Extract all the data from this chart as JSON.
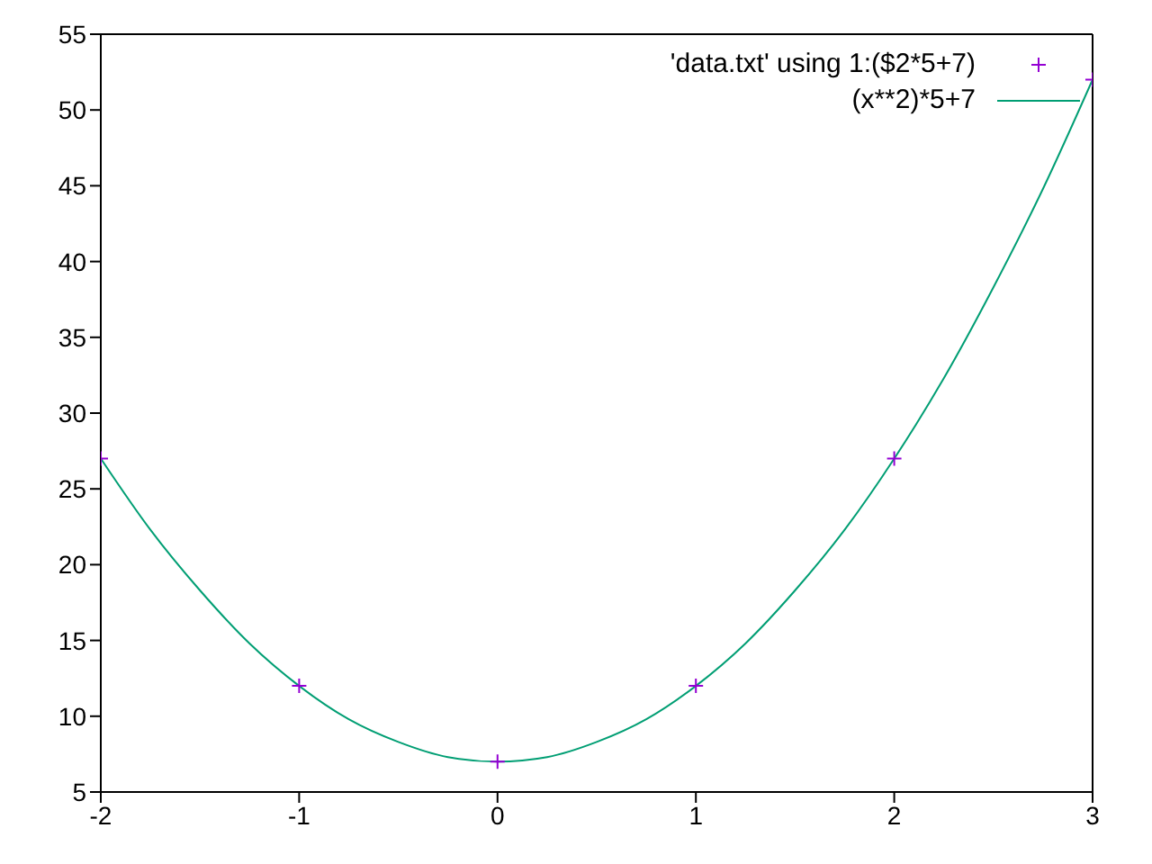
{
  "chart_data": {
    "type": "scatter",
    "xlim": [
      -2,
      3
    ],
    "xticks": [
      -2,
      -1,
      0,
      1,
      2,
      3
    ],
    "ylim": [
      5,
      55
    ],
    "yticks": [
      5,
      10,
      15,
      20,
      25,
      30,
      35,
      40,
      45,
      50,
      55
    ],
    "legend": "top right",
    "series": [
      {
        "name": "'data.txt' using 1:($2*5+7)",
        "color": "#9400d3",
        "marker": "cross",
        "x": [
          -2,
          -1,
          0,
          1,
          2,
          3
        ],
        "values": [
          27,
          12,
          7,
          12,
          27,
          52
        ]
      },
      {
        "name": "(x**2)*5+7",
        "type": "line",
        "color": "#009e73",
        "marker": "none",
        "line_style": "solid",
        "x": [
          -2,
          -1.75,
          -1.5,
          -1.25,
          -1,
          -0.75,
          -0.5,
          -0.25,
          0,
          0.25,
          0.5,
          0.75,
          1,
          1.25,
          1.5,
          1.75,
          2,
          2.25,
          2.5,
          2.75,
          3
        ],
        "values": [
          27,
          22.3,
          18.3,
          14.8,
          12,
          9.8,
          8.3,
          7.3,
          7,
          7.3,
          8.3,
          9.8,
          12,
          14.8,
          18.3,
          22.3,
          27,
          32.3,
          38.3,
          44.8,
          52
        ]
      }
    ]
  }
}
